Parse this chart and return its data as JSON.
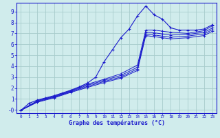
{
  "xlabel": "Graphe des températures (°C)",
  "bg_color": "#d0ecec",
  "grid_color": "#a8cccc",
  "line_color": "#1a1acc",
  "xlim": [
    -0.5,
    23.5
  ],
  "ylim": [
    -0.3,
    9.8
  ],
  "xticks": [
    0,
    1,
    2,
    3,
    4,
    5,
    6,
    7,
    8,
    9,
    10,
    11,
    12,
    13,
    14,
    15,
    16,
    17,
    18,
    19,
    20,
    21,
    22,
    23
  ],
  "yticks": [
    0,
    1,
    2,
    3,
    4,
    5,
    6,
    7,
    8,
    9
  ],
  "ytick_labels": [
    "0",
    "1",
    "2",
    "3",
    "4",
    "5",
    "6",
    "7",
    "8",
    "9"
  ],
  "y0_label": "-0",
  "lines": [
    {
      "x": [
        0,
        1,
        2,
        3,
        4,
        5,
        6,
        7,
        8,
        9,
        10,
        11,
        12,
        13,
        14,
        15,
        16,
        17,
        18,
        19,
        20,
        21,
        22,
        23
      ],
      "y": [
        -0.05,
        0.6,
        0.9,
        1.1,
        1.3,
        1.55,
        1.8,
        2.1,
        2.45,
        3.0,
        4.4,
        5.5,
        6.6,
        7.4,
        8.6,
        9.5,
        8.7,
        8.3,
        7.5,
        7.3,
        7.3,
        7.3,
        7.4,
        7.8
      ],
      "markers": true
    },
    {
      "x": [
        0,
        2,
        4,
        6,
        8,
        10,
        12,
        14,
        15,
        16,
        17,
        18,
        20,
        22,
        23
      ],
      "y": [
        -0.05,
        0.85,
        1.25,
        1.75,
        2.35,
        2.8,
        3.3,
        4.1,
        7.3,
        7.3,
        7.2,
        7.1,
        7.0,
        7.25,
        7.7
      ],
      "markers": false
    },
    {
      "x": [
        0,
        2,
        4,
        6,
        8,
        10,
        12,
        14,
        15,
        16,
        17,
        18,
        20,
        22,
        23
      ],
      "y": [
        -0.05,
        0.8,
        1.2,
        1.7,
        2.25,
        2.7,
        3.15,
        3.9,
        7.1,
        7.05,
        6.95,
        6.85,
        6.9,
        7.1,
        7.5
      ],
      "markers": false
    },
    {
      "x": [
        0,
        2,
        4,
        6,
        8,
        10,
        12,
        14,
        15,
        16,
        17,
        18,
        20,
        22,
        23
      ],
      "y": [
        -0.05,
        0.75,
        1.15,
        1.65,
        2.15,
        2.6,
        3.0,
        3.75,
        6.95,
        6.85,
        6.75,
        6.65,
        6.75,
        6.95,
        7.35
      ],
      "markers": false
    },
    {
      "x": [
        0,
        2,
        4,
        6,
        8,
        10,
        12,
        14,
        15,
        16,
        17,
        18,
        20,
        22,
        23
      ],
      "y": [
        -0.05,
        0.7,
        1.1,
        1.6,
        2.05,
        2.5,
        2.9,
        3.6,
        6.8,
        6.7,
        6.6,
        6.5,
        6.6,
        6.8,
        7.2
      ],
      "markers": false
    }
  ]
}
